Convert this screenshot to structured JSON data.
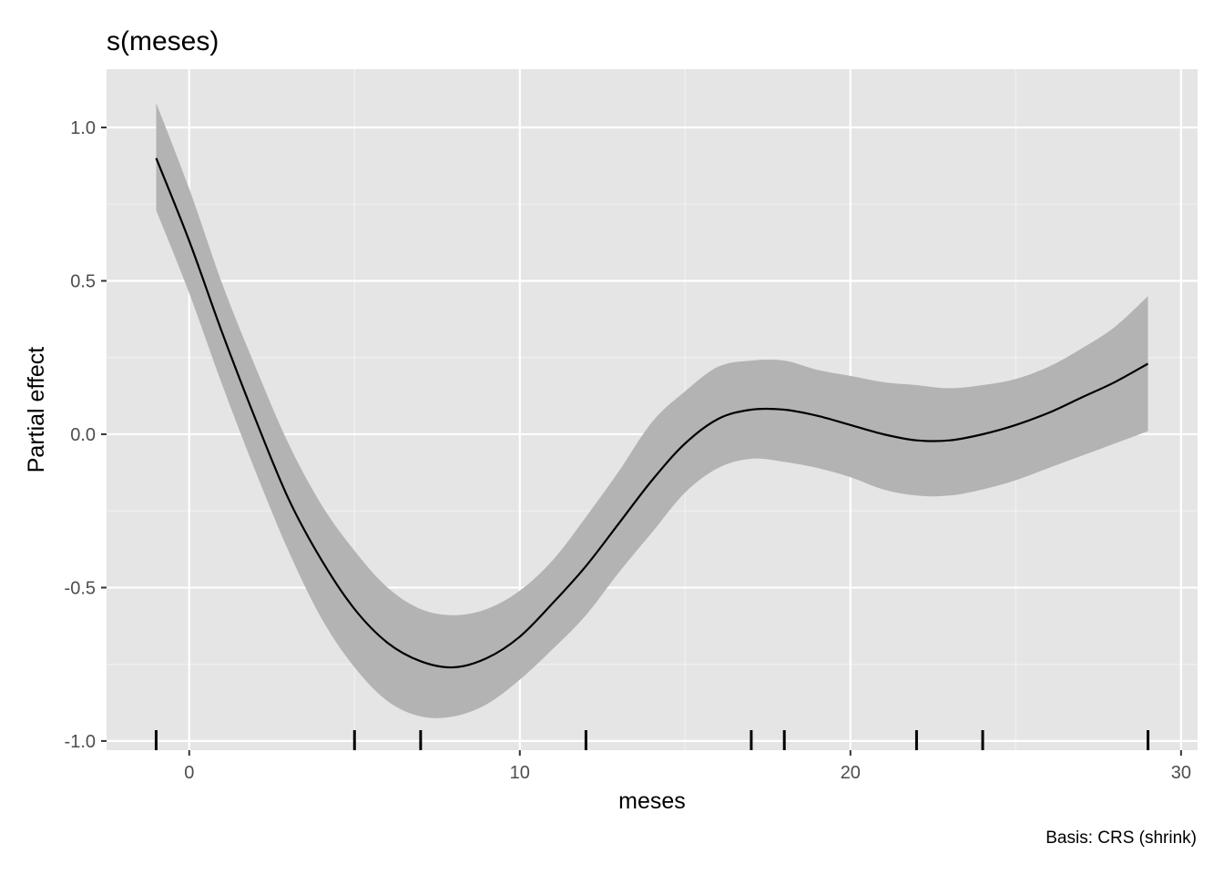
{
  "chart_data": {
    "type": "line",
    "title": "s(meses)",
    "xlabel": "meses",
    "ylabel": "Partial effect",
    "caption": "Basis: CRS (shrink)",
    "xlim": [
      -2.5,
      30.5
    ],
    "ylim": [
      -1.03,
      1.19
    ],
    "x_ticks": [
      0,
      10,
      20,
      30
    ],
    "y_ticks": [
      -1.0,
      -0.5,
      0.0,
      0.5,
      1.0
    ],
    "x_tick_labels": [
      "0",
      "10",
      "20",
      "30"
    ],
    "y_tick_labels": [
      "-1.0",
      "-0.5",
      "0.0",
      "0.5",
      "1.0"
    ],
    "grid": true,
    "background": "#e5e5e5",
    "series": [
      {
        "x": [
          -1,
          0,
          1,
          2,
          3,
          4,
          5,
          6,
          7,
          8,
          9,
          10,
          11,
          12,
          13,
          14,
          15,
          16,
          17,
          18,
          19,
          20,
          21,
          22,
          23,
          24,
          25,
          26,
          27,
          28,
          29
        ],
        "estimate": [
          0.9,
          0.63,
          0.33,
          0.05,
          -0.21,
          -0.41,
          -0.57,
          -0.68,
          -0.74,
          -0.76,
          -0.73,
          -0.66,
          -0.55,
          -0.43,
          -0.29,
          -0.15,
          -0.03,
          0.05,
          0.08,
          0.08,
          0.06,
          0.03,
          0.0,
          -0.02,
          -0.02,
          0.0,
          0.03,
          0.07,
          0.12,
          0.17,
          0.23
        ],
        "lower": [
          0.73,
          0.46,
          0.16,
          -0.12,
          -0.38,
          -0.6,
          -0.76,
          -0.87,
          -0.92,
          -0.92,
          -0.88,
          -0.8,
          -0.7,
          -0.59,
          -0.45,
          -0.32,
          -0.19,
          -0.11,
          -0.08,
          -0.09,
          -0.11,
          -0.14,
          -0.18,
          -0.2,
          -0.2,
          -0.18,
          -0.15,
          -0.11,
          -0.07,
          -0.03,
          0.01
        ],
        "upper": [
          1.08,
          0.8,
          0.49,
          0.22,
          -0.03,
          -0.23,
          -0.38,
          -0.5,
          -0.57,
          -0.59,
          -0.57,
          -0.51,
          -0.41,
          -0.27,
          -0.12,
          0.04,
          0.14,
          0.22,
          0.24,
          0.24,
          0.21,
          0.19,
          0.17,
          0.16,
          0.15,
          0.16,
          0.18,
          0.22,
          0.28,
          0.35,
          0.45
        ],
        "color": "#000000",
        "band_color": "#b3b3b3"
      }
    ],
    "rug_x": [
      -1,
      5,
      7,
      12,
      17,
      18,
      22,
      24,
      29
    ]
  }
}
